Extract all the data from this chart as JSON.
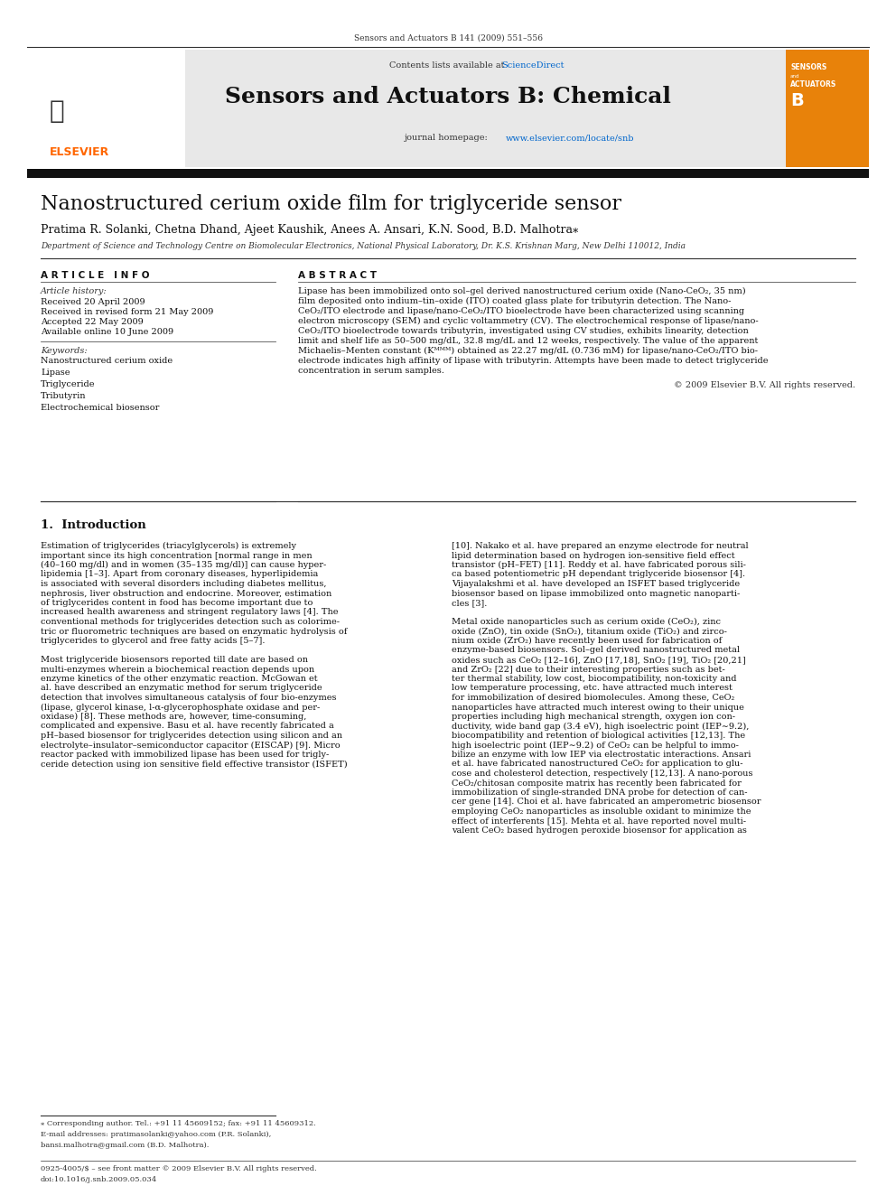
{
  "journal_ref": "Sensors and Actuators B 141 (2009) 551–556",
  "contents_text": "Contents lists available at ",
  "sciencedirect_text": "ScienceDirect",
  "journal_name": "Sensors and Actuators B: Chemical",
  "journal_homepage": "journal homepage: www.elsevier.com/locate/snb",
  "paper_title": "Nanostructured cerium oxide film for triglyceride sensor",
  "authors": "Pratima R. Solanki, Chetna Dhand, Ajeet Kaushik, Anees A. Ansari, K.N. Sood, B.D. Malhotra⁎",
  "affiliation": "Department of Science and Technology Centre on Biomolecular Electronics, National Physical Laboratory, Dr. K.S. Krishnan Marg, New Delhi 110012, India",
  "article_info_header": "A R T I C L E   I N F O",
  "abstract_header": "A B S T R A C T",
  "article_history_label": "Article history:",
  "received": "Received 20 April 2009",
  "revised": "Received in revised form 21 May 2009",
  "accepted": "Accepted 22 May 2009",
  "available": "Available online 10 June 2009",
  "keywords_label": "Keywords:",
  "keywords": [
    "Nanostructured cerium oxide",
    "Lipase",
    "Triglyceride",
    "Tributyrin",
    "Electrochemical biosensor"
  ],
  "abstract_text": "Lipase has been immobilized onto sol–gel derived nanostructured cerium oxide (Nano-CeO₂, 35 nm) film deposited onto indium–tin–oxide (ITO) coated glass plate for tributyrin detection. The Nano-CeO₂/ITO electrode and lipase/nano-CeO₂/ITO bioelectrode have been characterized using scanning electron microscopy (SEM) and cyclic voltammetry (CV). The electrochemical response of lipase/nano-CeO₂/ITO bioelectrode towards tributyrin, investigated using CV studies, exhibits linearity, detection limit and shelf life as 50–500 mg/dL, 32.8 mg/dL and 12 weeks, respectively. The value of the apparent Michaelis–Menten constant (Kᴹᴹᴹ) obtained as 22.27 mg/dL (0.736 mM) for lipase/nano-CeO₂/ITO bioelectrode indicates high affinity of lipase with tributyrin. Attempts have been made to detect triglyceride concentration in serum samples.",
  "copyright": "© 2009 Elsevier B.V. All rights reserved.",
  "section1_header": "1.  Introduction",
  "intro_col1": "Estimation of triglycerides (triacylglycerols) is extremely important since its high concentration [normal range in men (40–160 mg/dl) and in women (35–135 mg/dl)] can cause hyperlipidemia [1–3]. Apart from coronary diseases, hyperlipidemia is associated with several disorders including diabetes mellitus, nephrosis, liver obstruction and endocrine. Moreover, estimation of triglycerides content in food has become important due to increased health awareness and stringent regulatory laws [4]. The conventional methods for triglycerides detection such as colorimetric or fluorometric techniques are based on enzymatic hydrolysis of triglycerides to glycerol and free fatty acids [5–7].\n\nMost triglyceride biosensors reported till date are based on multi-enzymes wherein a biochemical reaction depends upon enzyme kinetics of the other enzymatic reaction. McGowan et al. have described an enzymatic method for serum triglyceride detection that involves simultaneous catalysis of four bio-enzymes (lipase, glycerol kinase, l-α-glycerophosphate oxidase and peroxidase) [8]. These methods are, however, time-consuming, complicated and expensive. Basu et al. have recently fabricated a pH–based biosensor for triglycerides detection using silicon and an electrolyte–insulator–semiconductor capacitor (EISCAP) [9]. Micro reactor packed with immobilized lipase has been used for triglyceride detection using ion sensitive field effective transistor (ISFET)",
  "intro_col2": "[10]. Nakako et al. have prepared an enzyme electrode for neutral lipid determination based on hydrogen ion-sensitive field effect transistor (pH–FET) [11]. Reddy et al. have fabricated porous silica based potentiometric pH dependant triglyceride biosensor [4]. Vijayalakshmi et al. have developed an ISFET based triglyceride biosensor based on lipase immobilized onto magnetic nanoparticles [3].\n\nMetal oxide nanoparticles such as cerium oxide (CeO₂), zinc oxide (ZnO), tin oxide (SnO₂), titanium oxide (TiO₂) and zirconium oxide (ZrO₂) have recently been used for fabrication of enzyme-based biosensors. Sol–gel derived nanostructured metal oxides such as CeO₂ [12–16], ZnO [17,18], SnO₂ [19], TiO₂ [20,21] and ZrO₂ [22] due to their interesting properties such as better thermal stability, low cost, biocompatibility, non-toxicity and low temperature processing, etc. have attracted much interest for immobilization of desired biomolecules. Among these, CeO₂ nanoparticles have attracted much interest owing to their unique properties including high mechanical strength, oxygen ion conductivity, wide band gap (3.4 eV), high isoelectric point (IEP∼9.2), biocompatibility and retention of biological activities [12,13]. The high isoelectric point (IEP∼9.2) of CeO₂ can be helpful to immobilize an enzyme with low IEP via electrostatic interactions. Ansari et al. have fabricated nanostructured CeO₂ for application to glucose and cholesterol detection, respectively [12,13]. A nano-porous CeO₂/chitosan composite matrix has recently been fabricated for immobilization of single-stranded DNA probe for detection of cancer gene [14]. Choi et al. have fabricated an amperometric biosensor employing CeO₂ nanoparticles as insoluble oxidant to minimize the effect of interferents [15]. Mehta et al. have reported novel multivalent CeO₂ based hydrogen peroxide biosensor for application as",
  "footnote_star": "⁎ Corresponding author. Tel.: +91 11 45609152; fax: +91 11 45609312.",
  "footnote_email": "E-mail addresses: pratimasolanki@yahoo.com (P.R. Solanki),",
  "footnote_email2": "bansi.malhotra@gmail.com (B.D. Malhotra).",
  "bottom_line1": "0925-4005/$ – see front matter © 2009 Elsevier B.V. All rights reserved.",
  "bottom_line2": "doi:10.1016/j.snb.2009.05.034",
  "header_bg": "#e8e8e8",
  "header_bar_color": "#1a1a1a",
  "elsevier_orange": "#FF6600",
  "sciencedirect_blue": "#0066CC",
  "link_blue": "#0066CC",
  "text_color": "#000000",
  "bg_color": "#ffffff"
}
